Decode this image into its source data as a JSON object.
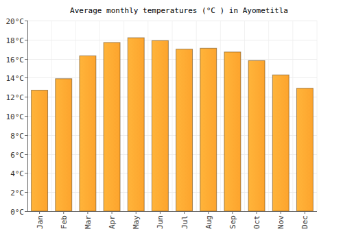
{
  "chart_data": {
    "type": "bar",
    "title": "Average monthly temperatures (°C ) in Ayometitla",
    "categories": [
      "Jan",
      "Feb",
      "Mar",
      "Apr",
      "May",
      "Jun",
      "Jul",
      "Aug",
      "Sep",
      "Oct",
      "Nov",
      "Dec"
    ],
    "values": [
      12.7,
      13.9,
      16.3,
      17.7,
      18.2,
      17.9,
      17.0,
      17.1,
      16.7,
      15.8,
      14.3,
      12.9
    ],
    "color": "#ffa733",
    "ylim": [
      0,
      20
    ],
    "yticks": [
      {
        "value": 0,
        "label": "0°C"
      },
      {
        "value": 2,
        "label": "2°C"
      },
      {
        "value": 4,
        "label": "4°C"
      },
      {
        "value": 6,
        "label": "6°C"
      },
      {
        "value": 8,
        "label": "8°C"
      },
      {
        "value": 10,
        "label": "10°C"
      },
      {
        "value": 12,
        "label": "12°C"
      },
      {
        "value": 14,
        "label": "14°C"
      },
      {
        "value": 16,
        "label": "16°C"
      },
      {
        "value": 18,
        "label": "18°C"
      },
      {
        "value": 20,
        "label": "20°C"
      }
    ],
    "grid": true
  }
}
